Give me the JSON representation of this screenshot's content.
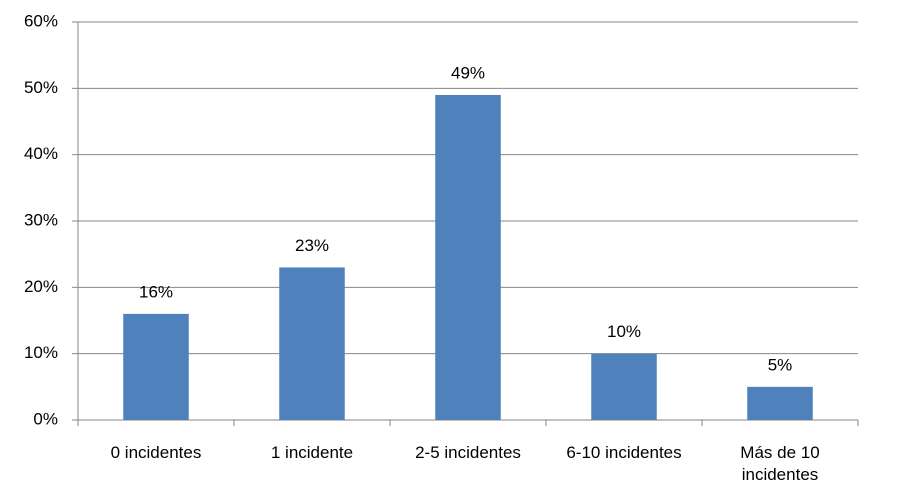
{
  "chart_data": {
    "type": "bar",
    "categories": [
      "0 incidentes",
      "1 incidente",
      "2-5 incidentes",
      "6-10 incidentes",
      "Más de 10 incidentes"
    ],
    "values": [
      16,
      23,
      49,
      10,
      5
    ],
    "value_labels": [
      "16%",
      "23%",
      "49%",
      "10%",
      "5%"
    ],
    "color": "#4f81bd",
    "ylim": [
      0,
      60
    ],
    "yticks": [
      {
        "value": 0,
        "label": "0%"
      },
      {
        "value": 10,
        "label": "10%"
      },
      {
        "value": 20,
        "label": "20%"
      },
      {
        "value": 30,
        "label": "30%"
      },
      {
        "value": 40,
        "label": "40%"
      },
      {
        "value": 50,
        "label": "50%"
      },
      {
        "value": 60,
        "label": "60%"
      }
    ],
    "grid": true
  }
}
